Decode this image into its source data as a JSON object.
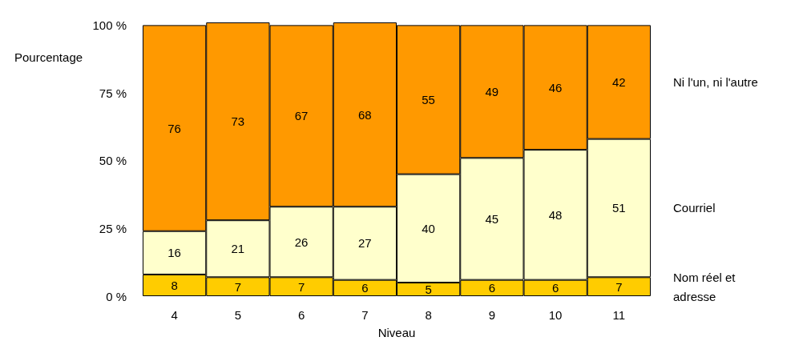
{
  "chart_data": {
    "type": "bar",
    "stacked": true,
    "ylabel": "Pourcentage",
    "xlabel": "Niveau",
    "categories": [
      "4",
      "5",
      "6",
      "7",
      "8",
      "9",
      "10",
      "11"
    ],
    "series": [
      {
        "name": "Nom réel et adresse",
        "color": "#ffcc00",
        "values": [
          8,
          7,
          7,
          6,
          5,
          6,
          6,
          7
        ]
      },
      {
        "name": "Courriel",
        "color": "#ffffcc",
        "values": [
          16,
          21,
          26,
          27,
          40,
          45,
          48,
          51
        ]
      },
      {
        "name": "Ni l'un, ni l'autre",
        "color": "#ff9900",
        "values": [
          76,
          73,
          67,
          68,
          55,
          49,
          46,
          42
        ]
      }
    ],
    "ylim": [
      0,
      101
    ],
    "yticks": [
      {
        "value": 0,
        "label": "0 %"
      },
      {
        "value": 25,
        "label": "25 %"
      },
      {
        "value": 50,
        "label": "50 %"
      },
      {
        "value": 75,
        "label": "75 %"
      },
      {
        "value": 100,
        "label": "100 %"
      }
    ],
    "data_labels": true
  }
}
